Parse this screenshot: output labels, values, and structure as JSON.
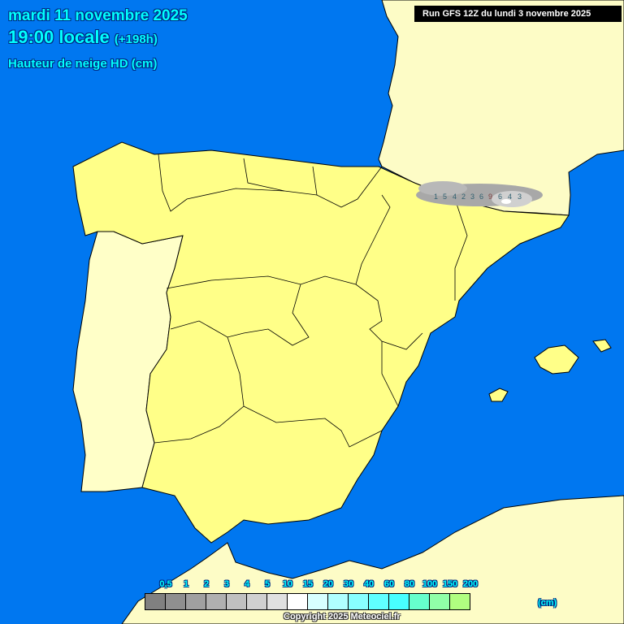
{
  "header": {
    "date": "mardi 11 novembre 2025",
    "time": "19:00 locale",
    "lead": "(+198h)",
    "parameter": "Hauteur de neige HD (cm)",
    "run": "Run GFS 12Z du lundi 3 novembre 2025"
  },
  "colors": {
    "sea": "#0077f0",
    "spain": "#ffff88",
    "portugal": "#ffffc8",
    "foreign_land": "#fdfcc6",
    "header_text": "#00ffff"
  },
  "snow_labels": [
    "1",
    "5",
    "4",
    "2",
    "3",
    "6",
    "9",
    "6",
    "4",
    "3"
  ],
  "legend": {
    "labels": [
      "0,5",
      "1",
      "2",
      "3",
      "4",
      "5",
      "10",
      "15",
      "20",
      "30",
      "40",
      "60",
      "80",
      "100",
      "150",
      "200"
    ],
    "colors": [
      "#808080",
      "#8f8f8f",
      "#a0a0a0",
      "#b0b0b0",
      "#c0c0c0",
      "#d0d0d0",
      "#e0e0e0",
      "#ffffff",
      "#d8ffff",
      "#b0ffff",
      "#88ffff",
      "#60ffff",
      "#48ffff",
      "#66ffcc",
      "#90ffa8",
      "#b0ff80"
    ],
    "unit": "(cm)"
  },
  "copyright": "Copyright 2025 Meteociel.fr"
}
